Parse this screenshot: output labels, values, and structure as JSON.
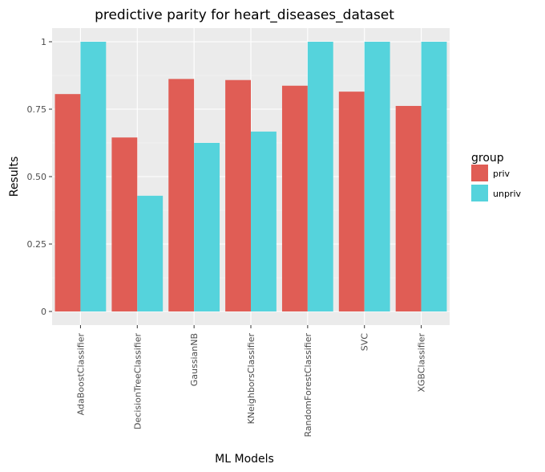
{
  "chart_data": {
    "type": "bar",
    "title": "predictive parity for heart_diseases_dataset",
    "xlabel": "ML Models",
    "ylabel": "Results",
    "ylim": [
      0,
      1.05
    ],
    "yticks": [
      0,
      0.25,
      0.5,
      0.75,
      1
    ],
    "ytick_labels": [
      "0",
      "0.25",
      "0.50",
      "0.75",
      "1"
    ],
    "grid": true,
    "legend_position": "right",
    "legend_title": "group",
    "categories": [
      "AdaBoostClassifier",
      "DecisionTreeClassifier",
      "GaussianNB",
      "KNeighborsClassifier",
      "RandomForestClassifier",
      "SVC",
      "XGBClassifier"
    ],
    "series": [
      {
        "name": "priv",
        "color": "#e05d55",
        "values": [
          0.806,
          0.645,
          0.862,
          0.858,
          0.837,
          0.815,
          0.762
        ]
      },
      {
        "name": "unpriv",
        "color": "#55d3dc",
        "values": [
          1.0,
          0.429,
          0.625,
          0.667,
          1.0,
          1.0,
          1.0
        ]
      }
    ]
  }
}
